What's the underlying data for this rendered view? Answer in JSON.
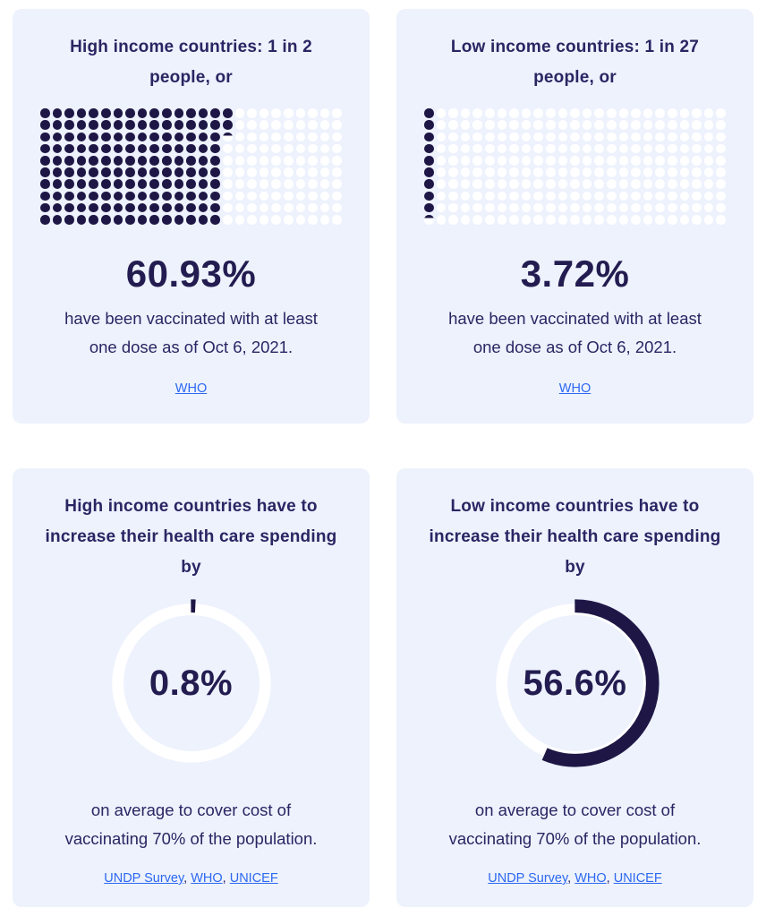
{
  "colors": {
    "page_bg": "#ffffff",
    "card_bg": "#edf2fd",
    "navy_text": "#2b2563",
    "stat_navy": "#231c50",
    "shape_dark": "#1e1746",
    "shape_white": "#ffffff",
    "link_blue": "#2d68f1"
  },
  "cards": [
    {
      "id": "high-income-vaccinated",
      "title_lines": [
        "High income countries: 1 in 2",
        "people, or",
        ""
      ],
      "stat": "60.93%",
      "desc_lines": [
        "have been vaccinated with at least",
        "one dose as of Oct 6, 2021."
      ],
      "links": [
        "WHO"
      ]
    },
    {
      "id": "low-income-vaccinated",
      "title_lines": [
        "Low income countries: 1 in 27",
        "people, or",
        ""
      ],
      "stat": "3.72%",
      "desc_lines": [
        "have been vaccinated with at least",
        "one dose as of Oct 6, 2021."
      ],
      "links": [
        "WHO"
      ]
    },
    {
      "id": "high-income-spending",
      "title_lines": [
        "High income countries have to",
        "increase their health care spending",
        "by"
      ],
      "stat": "0.8%",
      "desc_lines": [
        "on average to cover cost of",
        "vaccinating 70% of the population."
      ],
      "links": [
        "UNDP Survey",
        "WHO",
        "UNICEF"
      ]
    },
    {
      "id": "low-income-spending",
      "title_lines": [
        "Low income countries have to",
        "increase their health care spending",
        "by"
      ],
      "stat": "56.6%",
      "desc_lines": [
        "on average to cover cost of",
        "vaccinating 70% of the population."
      ],
      "links": [
        "UNDP Survey",
        "WHO",
        "UNICEF"
      ]
    }
  ],
  "chart_data": [
    {
      "type": "waffle",
      "title": "High income countries: 1 in 2 people, or",
      "rows": 10,
      "columns": 25,
      "total_dots": 250,
      "percent_filled": 60.93,
      "fill_order": "column-major-top-down",
      "value_label": "60.93%",
      "note": "have been vaccinated with at least one dose as of Oct 6, 2021.",
      "source": "WHO"
    },
    {
      "type": "waffle",
      "title": "Low income countries: 1 in 27 people, or",
      "rows": 10,
      "columns": 25,
      "total_dots": 250,
      "percent_filled": 3.72,
      "fill_order": "column-major-top-down",
      "value_label": "3.72%",
      "note": "have been vaccinated with at least one dose as of Oct 6, 2021.",
      "source": "WHO"
    },
    {
      "type": "donut",
      "title": "High income countries have to increase their health care spending by",
      "percent": 0.8,
      "value_label": "0.8%",
      "arc_start": "top",
      "arc_direction": "clockwise",
      "note": "on average to cover cost of vaccinating 70% of the population.",
      "sources": [
        "UNDP Survey",
        "WHO",
        "UNICEF"
      ]
    },
    {
      "type": "donut",
      "title": "Low income countries have to increase their health care spending by",
      "percent": 56.6,
      "value_label": "56.6%",
      "arc_start": "top",
      "arc_direction": "clockwise",
      "note": "on average to cover cost of vaccinating 70% of the population.",
      "sources": [
        "UNDP Survey",
        "WHO",
        "UNICEF"
      ]
    }
  ]
}
